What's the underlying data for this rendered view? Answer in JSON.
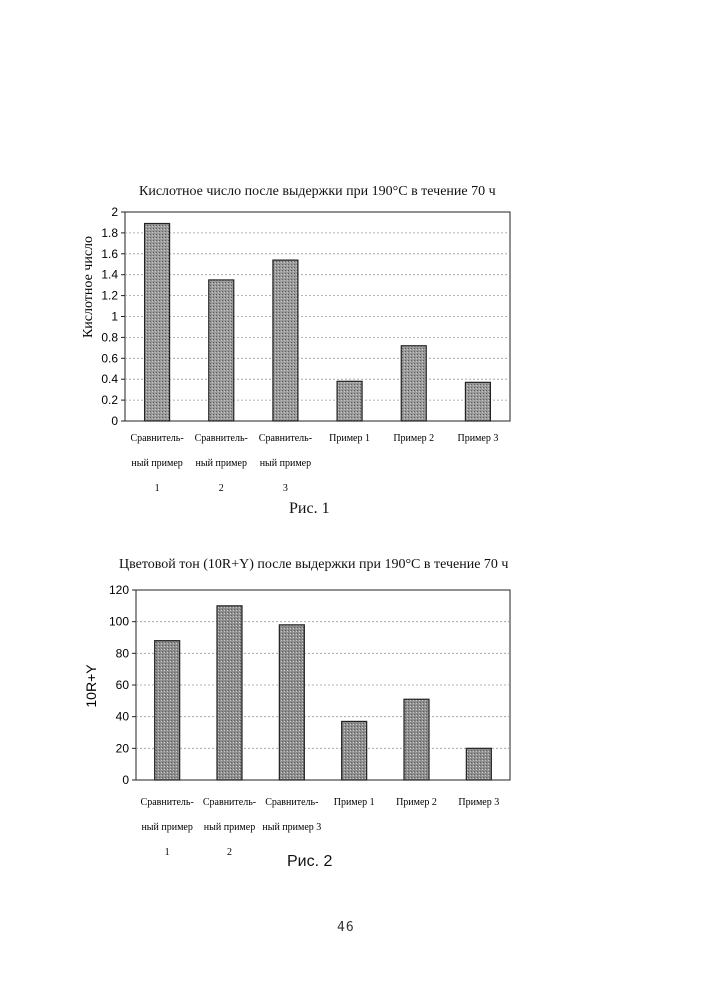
{
  "chart_data": [
    {
      "type": "bar",
      "title": "Кислотное число после выдержки при 190°С в течение 70 ч",
      "ylabel": "Кислотное число",
      "xlabel": "",
      "ylim": [
        0,
        2
      ],
      "yticks": [
        "0",
        "0.2",
        "0.4",
        "0.6",
        "0.8",
        "1",
        "1.2",
        "1.4",
        "1.6",
        "1.8",
        "2"
      ],
      "categories": [
        [
          "Сравнитель-",
          "ный пример",
          "1"
        ],
        [
          "Сравнитель-",
          "ный пример",
          "2"
        ],
        [
          "Сравнитель-",
          "ный пример",
          "3"
        ],
        [
          "Пример 1"
        ],
        [
          "Пример 2"
        ],
        [
          "Пример 3"
        ]
      ],
      "values": [
        1.89,
        1.35,
        1.54,
        0.38,
        0.72,
        0.37
      ],
      "grid": true,
      "bar_color": "#9a9a9a"
    },
    {
      "type": "bar",
      "title": "Цветовой тон (10R+Y) после выдержки при 190°С в течение 70 ч",
      "ylabel": "10R+Y",
      "xlabel": "",
      "ylim": [
        0,
        120
      ],
      "yticks": [
        "0",
        "20",
        "40",
        "60",
        "80",
        "100",
        "120"
      ],
      "categories": [
        [
          "Сравнитель-",
          "ный пример",
          "1"
        ],
        [
          "Сравнитель-",
          "ный пример",
          "2"
        ],
        [
          "Сравнитель-",
          "ный пример 3"
        ],
        [
          "Пример 1"
        ],
        [
          "Пример 2"
        ],
        [
          "Пример 3"
        ]
      ],
      "values": [
        88,
        110,
        98,
        37,
        51,
        20
      ],
      "grid": true,
      "bar_color": "#8f8f8f"
    }
  ],
  "captions": {
    "fig1": "Рис. 1",
    "fig2": "Рис. 2"
  },
  "page_number": "46"
}
